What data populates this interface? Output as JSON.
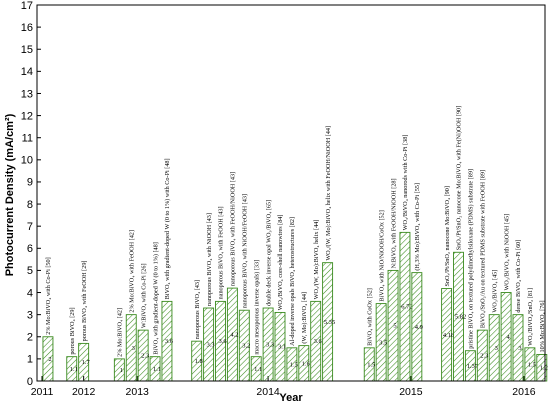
{
  "chart_data": {
    "type": "bar",
    "xlabel": "Year",
    "ylabel": "Photocurrent Density (mA/cm²)",
    "ylim": [
      0,
      17
    ],
    "yticks": [
      "0",
      "1",
      "2",
      "3",
      "4",
      "5",
      "6",
      "7",
      "8",
      "9",
      "10",
      "11",
      "12",
      "13",
      "14",
      "15",
      "16",
      "17"
    ],
    "colors": {
      "bar_stroke": "#3a8a1e",
      "hatch": "#3a8a1e",
      "axis": "#000000"
    },
    "years": [
      {
        "label": "2011",
        "x": 0
      },
      {
        "label": "2012",
        "x": 3.5
      },
      {
        "label": "2013",
        "x": 8
      },
      {
        "label": "2014",
        "x": 19
      },
      {
        "label": "2015",
        "x": 31
      },
      {
        "label": "2016",
        "x": 40.5
      }
    ],
    "bars": [
      {
        "x": 0.5,
        "value": 2,
        "value_label": "2",
        "label": "2% Mo:BiVO₄ with Co-Pi [50]"
      },
      {
        "x": 2.5,
        "value": 1.1,
        "value_label": "1.1",
        "label": "porous BiVO₄ [29]"
      },
      {
        "x": 3.5,
        "value": 1.7,
        "value_label": "1.7",
        "label": "porous BiVO₄ with FeOOH [29]"
      },
      {
        "x": 6.5,
        "value": 1,
        "value_label": "1",
        "label": "2% Mo:BiVO₄ [42]"
      },
      {
        "x": 7.5,
        "value": 3,
        "value_label": "3",
        "label": "2% Mo:BiVO₄ with FeOOH [42]"
      },
      {
        "x": 8.5,
        "value": 2.3,
        "value_label": "2.3",
        "label": "W:BiVO₄ with Co-Pi [26]"
      },
      {
        "x": 9.5,
        "value": 1.1,
        "value_label": "1.1",
        "label": "BiVO₄ with gradient-doped W (0 to 1%) [48]"
      },
      {
        "x": 10.5,
        "value": 3.6,
        "value_label": "3.6",
        "label": "BiVO₄ with gradient-doped W (0 to 1%) with Co-Pi [48]"
      },
      {
        "x": 13,
        "value": 1.8,
        "value_label": "1.8",
        "label": "nanoporous BiVO₄ [43]"
      },
      {
        "x": 14,
        "value": 3.3,
        "value_label": "3.3",
        "label": "nanoporous BiVO₄ with NiOOH [43]"
      },
      {
        "x": 15,
        "value": 3.6,
        "value_label": "3.6",
        "label": "nanoporous BiVO₄ with FeOOH [43]"
      },
      {
        "x": 16,
        "value": 4.2,
        "value_label": "4.2",
        "label": "nanoporous BiVO₄ with FeOOH/NiOOH [43]"
      },
      {
        "x": 17,
        "value": 3.2,
        "value_label": "3.2",
        "label": "nanoporous BiVO₄ with NiOOH/FeOOH [43]"
      },
      {
        "x": 18,
        "value": 1.1,
        "value_label": "1.1",
        "label": "macro mesoporous inverse opals) [33]"
      },
      {
        "x": 19,
        "value": 3.3,
        "value_label": "3.3",
        "label": "double deck inverse opal WO₃/BiVO₄ [65]"
      },
      {
        "x": 20,
        "value": 3.1,
        "value_label": "3.1",
        "label": "WO₃/BiVO₄ core-shell nanowires [84]"
      },
      {
        "x": 21,
        "value": 1.5,
        "value_label": "1.5",
        "label": "Al-doped inverse opals BiVO₄ heterostructures [82]"
      },
      {
        "x": 22,
        "value": 1.6,
        "value_label": "1.6",
        "label": "(W, Mo):BiVO₄ [44]"
      },
      {
        "x": 23,
        "value": 3.6,
        "value_label": "3.6",
        "label": "WO₃/(W, Mo):BiVO₄ helix [44]"
      },
      {
        "x": 24,
        "value": 5.35,
        "value_label": "5.35",
        "label": "WO₃/(W, Mo):BiVO₄ helix with FeOOH/NiOOH [44]"
      },
      {
        "x": 27.5,
        "value": 1.5,
        "value_label": "1.5",
        "label": "BiVO₄ with CoOx [52]"
      },
      {
        "x": 28.5,
        "value": 3.5,
        "value_label": "3.5",
        "label": "BiVO₄ with NiO/NiOOH/CoOx [52]"
      },
      {
        "x": 29.5,
        "value": 5,
        "value_label": "5",
        "label": "N:BiVO₄ with FeOOH/NiOOH [28]"
      },
      {
        "x": 30.5,
        "value": 6.72,
        "value_label": "6.72",
        "label": "WO₃/BiVO₄ nanorods with Co-Pi [38]"
      },
      {
        "x": 31.5,
        "value": 4.9,
        "value_label": "4.9",
        "label": "(H,3% Mo):BiVO₄ with Co-Pi [55]"
      },
      {
        "x": 34,
        "value": 4.18,
        "value_label": "4.18",
        "label": "SnOₓ/Pt/SnO₂ nanocone Mo:BiVO₄ [90]"
      },
      {
        "x": 35,
        "value": 5.82,
        "value_label": "5.82",
        "label": "SnOₓ/Pt/SnO₂ nanocone Mo:BiVO₄ with Fe(Ni)OOH [90]"
      },
      {
        "x": 36,
        "value": 1.37,
        "value_label": "1.37",
        "label": "pristine BiVO₄ on textured polydimethylsiloxane (PDMS) substrate [89]"
      },
      {
        "x": 37,
        "value": 2.3,
        "value_label": "2.3",
        "label": "BiVO₄/SnO₂/Au on textured PDMS substrate with FeOOH [89]"
      },
      {
        "x": 38,
        "value": 3,
        "value_label": "3",
        "label": "WO₃/BiVO₄ [45]"
      },
      {
        "x": 39,
        "value": 4,
        "value_label": "4",
        "label": "WO₃/BiVO₄ with NiOOH [45]"
      },
      {
        "x": 40,
        "value": 3,
        "value_label": "3",
        "label": "dense BiVO₄ with Co-Pi [60]"
      },
      {
        "x": 41,
        "value": 1.5,
        "value_label": "1.5",
        "label": "WO₃/BiVO₄/SnO₂ [81]"
      },
      {
        "x": 42,
        "value": 1.2,
        "value_label": "1.2",
        "label": "10% Mo:BiVO₄ [76]"
      }
    ]
  }
}
